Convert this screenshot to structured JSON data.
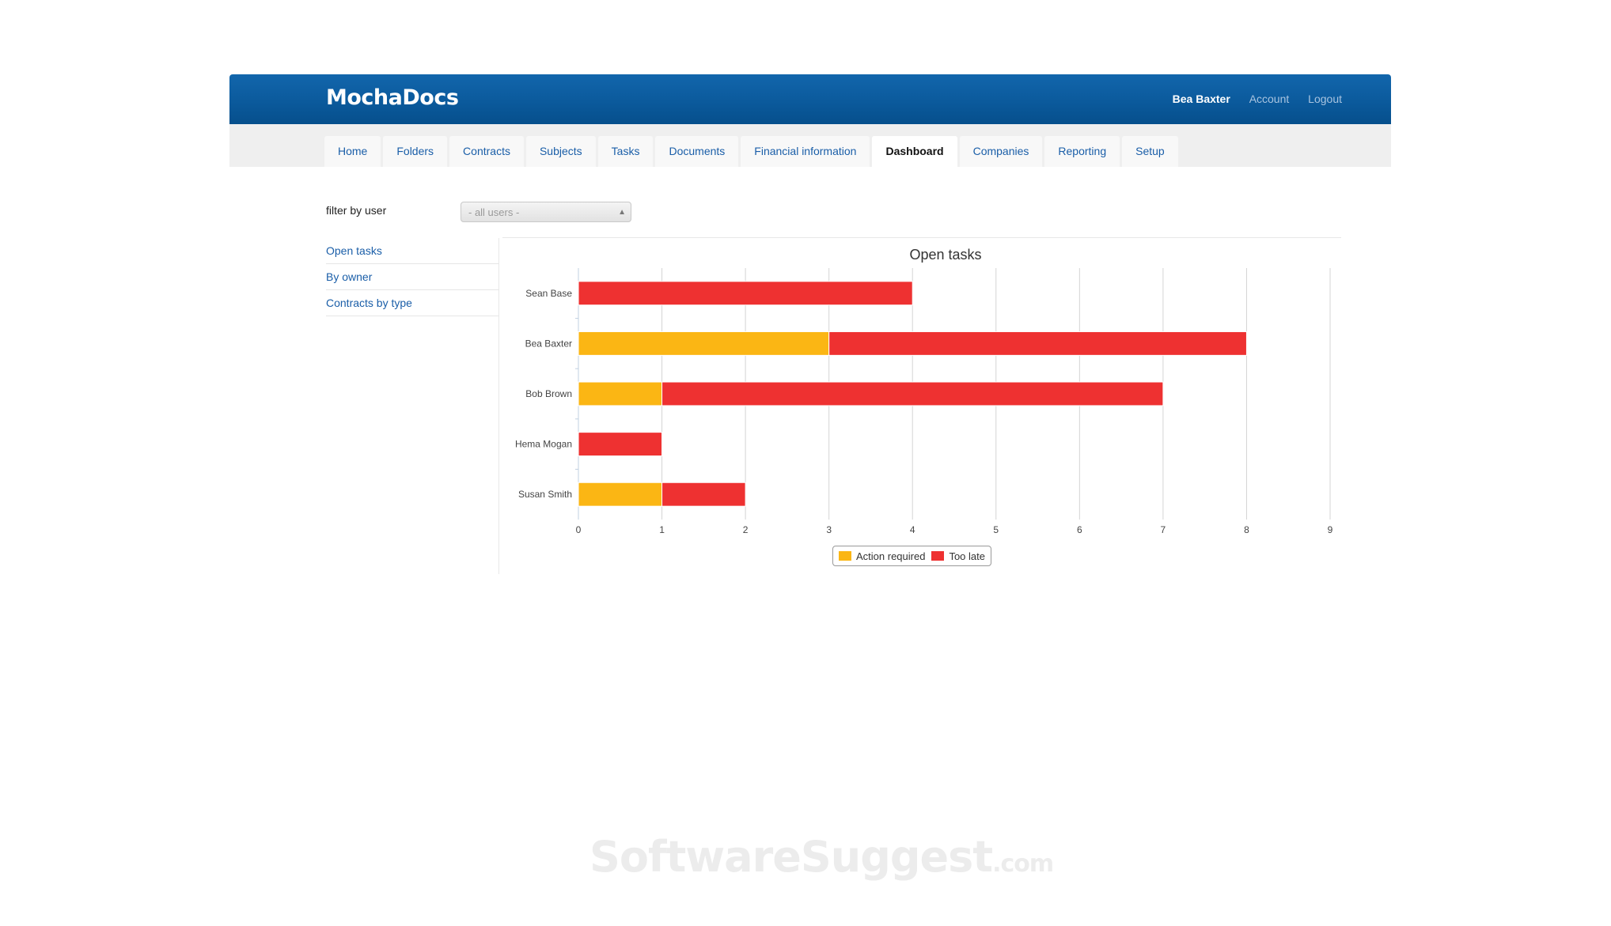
{
  "header": {
    "logo": "MochaDocs",
    "user_name": "Bea Baxter",
    "account_label": "Account",
    "logout_label": "Logout"
  },
  "nav": {
    "tabs": [
      {
        "label": "Home"
      },
      {
        "label": "Folders"
      },
      {
        "label": "Contracts"
      },
      {
        "label": "Subjects"
      },
      {
        "label": "Tasks"
      },
      {
        "label": "Documents"
      },
      {
        "label": "Financial information"
      },
      {
        "label": "Dashboard"
      },
      {
        "label": "Companies"
      },
      {
        "label": "Reporting"
      },
      {
        "label": "Setup"
      }
    ],
    "active_tab": "Dashboard"
  },
  "filter": {
    "label": "filter by user",
    "selected": "- all users -"
  },
  "sidebar": {
    "items": [
      {
        "label": "Open tasks"
      },
      {
        "label": "By owner"
      },
      {
        "label": "Contracts by type"
      }
    ]
  },
  "colors": {
    "header_blue": "#0b5a9c",
    "action_required": "#fbb614",
    "too_late": "#ee3131"
  },
  "chart_data": {
    "type": "bar",
    "orientation": "horizontal",
    "stacked": true,
    "title": "Open tasks",
    "categories": [
      "Sean Base",
      "Bea Baxter",
      "Bob Brown",
      "Hema Mogan",
      "Susan Smith"
    ],
    "series": [
      {
        "name": "Action required",
        "color": "#fbb614",
        "values": [
          0,
          3,
          1,
          0,
          1
        ]
      },
      {
        "name": "Too late",
        "color": "#ee3131",
        "values": [
          4,
          5,
          6,
          1,
          1
        ]
      }
    ],
    "xlim": [
      0,
      9
    ],
    "xticks": [
      0,
      1,
      2,
      3,
      4,
      5,
      6,
      7,
      8,
      9
    ],
    "grid": true,
    "legend_position": "bottom-center"
  },
  "watermark": {
    "text": "SoftwareSuggest",
    "suffix": ".com"
  }
}
